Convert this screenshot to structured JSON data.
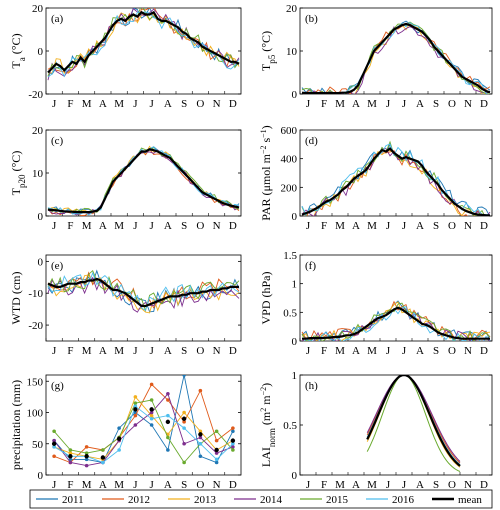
{
  "months": [
    "J",
    "F",
    "M",
    "A",
    "M",
    "J",
    "J",
    "A",
    "S",
    "O",
    "N",
    "D"
  ],
  "legend": {
    "entries": [
      {
        "label": "2011",
        "color": "#1f77b4"
      },
      {
        "label": "2012",
        "color": "#e05a1a"
      },
      {
        "label": "2013",
        "color": "#f2b01e"
      },
      {
        "label": "2014",
        "color": "#7e2f8e"
      },
      {
        "label": "2015",
        "color": "#6aaa2e"
      },
      {
        "label": "2016",
        "color": "#4dbeee"
      },
      {
        "label": "mean",
        "color": "#000000"
      }
    ]
  },
  "chart_data": [
    {
      "type": "line",
      "panel": "(a)",
      "ylabel": "T",
      "ylabel_sub": "a",
      "ylabel_unit": " (°C)",
      "ylim": [
        -20,
        20
      ],
      "yticks": [
        -20,
        0,
        20
      ],
      "mean_weekly": [
        -10,
        -8,
        -6,
        -7,
        -9,
        -7,
        -5,
        -6,
        -3,
        -5,
        -2,
        0,
        2,
        4,
        6,
        9,
        12,
        14,
        15,
        14,
        16,
        17,
        16,
        18,
        17,
        17,
        18,
        15,
        14,
        14,
        13,
        12,
        11,
        9,
        8,
        6,
        5,
        4,
        2,
        1,
        0,
        -1,
        -2,
        -3,
        -4,
        -5,
        -5,
        -6
      ],
      "spread": 5
    },
    {
      "type": "line",
      "panel": "(b)",
      "ylabel": "T",
      "ylabel_sub": "p5",
      "ylabel_unit": " (°C)",
      "ylim": [
        0,
        20
      ],
      "yticks": [
        0,
        10,
        20
      ],
      "mean_weekly": [
        0.3,
        0.2,
        0.2,
        0.2,
        0.2,
        0.2,
        0.2,
        0.2,
        0.2,
        0.2,
        0.3,
        0.3,
        0.5,
        1,
        2,
        4,
        6,
        8,
        10,
        11,
        12,
        13,
        14,
        15,
        15.5,
        16,
        16.3,
        16,
        15.5,
        15,
        14.5,
        13.5,
        12.5,
        11,
        10,
        9,
        8,
        7,
        6,
        5,
        4,
        3.5,
        3,
        2.5,
        2,
        1.2,
        0.7,
        0.4
      ],
      "spread": 1.5
    },
    {
      "type": "line",
      "panel": "(c)",
      "ylabel": "T",
      "ylabel_sub": "p20",
      "ylabel_unit": " (°C)",
      "ylim": [
        0,
        20
      ],
      "yticks": [
        0,
        10,
        20
      ],
      "mean_weekly": [
        1.5,
        1.4,
        1.3,
        1.2,
        1.1,
        1,
        1,
        0.9,
        0.9,
        0.9,
        0.9,
        1,
        1.2,
        2,
        4,
        6,
        8,
        9,
        10,
        11,
        12,
        13,
        14,
        15,
        15,
        15.5,
        15.3,
        15,
        14.5,
        14,
        13.5,
        12.5,
        11.5,
        10.5,
        9.5,
        8.5,
        7.5,
        6.5,
        5.5,
        5,
        4.5,
        4,
        3.5,
        3,
        2.7,
        2.4,
        2.2,
        2
      ],
      "spread": 1
    },
    {
      "type": "line",
      "panel": "(d)",
      "ylabel": "PAR (μmol m",
      "ylabel_sup1": "−2",
      "ylabel_mid": " s",
      "ylabel_sup2": "−1",
      "ylabel_end": ")",
      "ylim": [
        0,
        600
      ],
      "yticks": [
        0,
        200,
        400,
        600
      ],
      "mean_weekly": [
        10,
        20,
        30,
        45,
        60,
        80,
        100,
        110,
        130,
        150,
        180,
        200,
        230,
        260,
        280,
        300,
        320,
        360,
        400,
        430,
        460,
        450,
        470,
        440,
        420,
        400,
        410,
        400,
        390,
        380,
        350,
        310,
        280,
        250,
        220,
        180,
        150,
        120,
        90,
        70,
        50,
        35,
        25,
        15,
        10,
        8,
        5,
        5
      ],
      "spread": 60
    },
    {
      "type": "line",
      "panel": "(e)",
      "ylabel": "WTD (cm)",
      "ylim": [
        -25,
        2
      ],
      "yticks": [
        -20,
        -10,
        0
      ],
      "mean_weekly": [
        -7,
        -7.5,
        -8,
        -8,
        -7.5,
        -7,
        -7,
        -7,
        -6.5,
        -6.5,
        -6,
        -6,
        -5.5,
        -6,
        -7,
        -8,
        -9,
        -9,
        -9.5,
        -10,
        -11,
        -12,
        -13,
        -14,
        -14,
        -13.5,
        -13,
        -12.5,
        -12,
        -11.5,
        -11,
        -11,
        -11,
        -10.5,
        -10.5,
        -10,
        -10,
        -10,
        -9.5,
        -9.5,
        -9,
        -9,
        -9,
        -8.5,
        -8.5,
        -8,
        -8,
        -8
      ],
      "spread": 4
    },
    {
      "type": "line",
      "panel": "(f)",
      "ylabel": "VPD (hPa)",
      "ylim": [
        0,
        1.5
      ],
      "yticks": [
        0,
        0.5,
        1,
        1.5
      ],
      "mean_weekly": [
        0.04,
        0.04,
        0.05,
        0.05,
        0.05,
        0.05,
        0.06,
        0.06,
        0.07,
        0.07,
        0.08,
        0.1,
        0.1,
        0.12,
        0.15,
        0.2,
        0.25,
        0.3,
        0.35,
        0.4,
        0.42,
        0.45,
        0.5,
        0.55,
        0.58,
        0.55,
        0.5,
        0.45,
        0.4,
        0.35,
        0.3,
        0.28,
        0.25,
        0.2,
        0.15,
        0.12,
        0.1,
        0.08,
        0.06,
        0.05,
        0.04,
        0.04,
        0.04,
        0.04,
        0.04,
        0.04,
        0.04,
        0.04
      ],
      "spread": 0.15
    },
    {
      "type": "scatter",
      "panel": "(g)",
      "ylabel": "precipitation (mm)",
      "ylim": [
        0,
        160
      ],
      "yticks": [
        0,
        50,
        100,
        150
      ],
      "series": [
        {
          "name": "2011",
          "values": [
            55,
            25,
            25,
            20,
            75,
            100,
            80,
            40,
            160,
            30,
            20,
            70
          ]
        },
        {
          "name": "2012",
          "values": [
            30,
            20,
            45,
            40,
            60,
            95,
            145,
            120,
            85,
            135,
            55,
            75
          ]
        },
        {
          "name": "2013",
          "values": [
            45,
            35,
            30,
            25,
            55,
            125,
            95,
            65,
            100,
            70,
            40,
            55
          ]
        },
        {
          "name": "2014",
          "values": [
            55,
            20,
            15,
            20,
            55,
            80,
            100,
            130,
            50,
            60,
            35,
            45
          ]
        },
        {
          "name": "2015",
          "values": [
            70,
            40,
            35,
            40,
            60,
            115,
            120,
            60,
            20,
            50,
            70,
            40
          ]
        },
        {
          "name": "2016",
          "values": [
            45,
            30,
            30,
            20,
            40,
            110,
            90,
            95,
            75,
            50,
            25,
            50
          ]
        },
        {
          "name": "mean",
          "values": [
            50,
            30,
            30,
            28,
            58,
            105,
            105,
            85,
            90,
            65,
            40,
            55
          ]
        }
      ]
    },
    {
      "type": "line",
      "panel": "(h)",
      "ylabel": "LAI",
      "ylabel_sub": "norm",
      "ylabel_unit": " (m",
      "ylabel_sup1": "2",
      "ylabel_mid": " m",
      "ylabel_sup2": "−2",
      "ylabel_end": ")",
      "ylim": [
        0,
        1
      ],
      "yticks": [
        0,
        0.5,
        1
      ],
      "peak_month": 6.5,
      "widths": [
        1.6,
        1.7,
        1.55,
        1.75,
        1.35,
        1.65,
        1.6
      ],
      "start_month": 4.2,
      "end_month": 10
    }
  ]
}
